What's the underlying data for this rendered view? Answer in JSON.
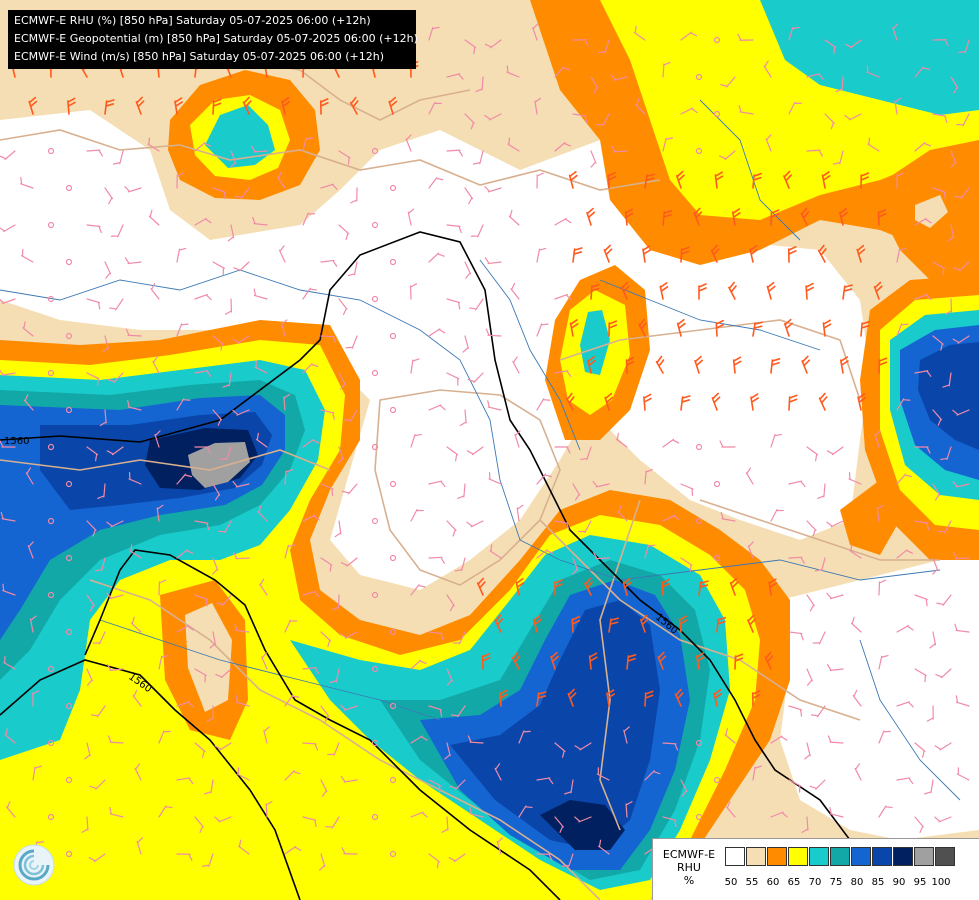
{
  "titles": {
    "line1": "ECMWF-E RHU (%) [850 hPa] Saturday 05-07-2025 06:00 (+12h)",
    "line2": "ECMWF-E Geopotential (m) [850 hPa] Saturday 05-07-2025 06:00 (+12h)",
    "line3": "ECMWF-E Wind (m/s) [850 hPa] Saturday 05-07-2025 06:00 (+12h)"
  },
  "contours": {
    "label_1": "1560",
    "label_2": "1560",
    "label_3": "1560"
  },
  "legend": {
    "title_line1": "ECMWF-E",
    "title_line2": "RHU",
    "unit": "%",
    "levels": [
      "50",
      "55",
      "60",
      "65",
      "70",
      "75",
      "80",
      "85",
      "90",
      "95",
      "100"
    ],
    "colors": [
      "#ffffff",
      "#f5deb3",
      "#ff8c00",
      "#ffff00",
      "#19cbcb",
      "#13a8a8",
      "#1464d2",
      "#0a46aa",
      "#002060",
      "#a0a0a0",
      "#505050"
    ]
  },
  "colors": {
    "land_border": "#d8b090",
    "river": "#3c78b4",
    "geopotential_line": "#000000",
    "wind_barb_light": "#f08aa8",
    "wind_barb_strong": "#ff5a1e"
  },
  "logo_icon": "ecmwf-logo-icon"
}
